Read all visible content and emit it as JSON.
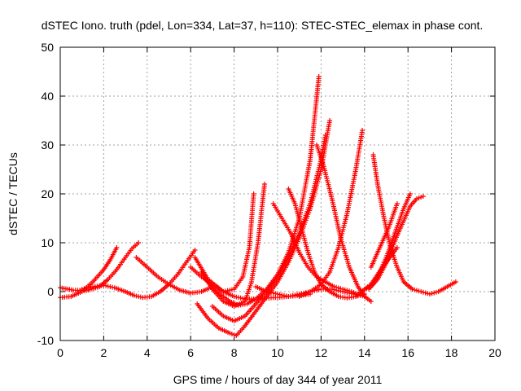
{
  "chart_data": {
    "type": "scatter",
    "title": "dSTEC Iono. truth (pdel, Lon=334, Lat=37, h=110): STEC-STEC_elemax in phase cont.",
    "xlabel": "GPS time / hours of day 344 of year 2011",
    "ylabel": "dSTEC  / TECUs",
    "xlim": [
      0,
      20
    ],
    "ylim": [
      -10,
      50
    ],
    "xticks": [
      0,
      2,
      4,
      6,
      8,
      10,
      12,
      14,
      16,
      18,
      20
    ],
    "yticks": [
      -10,
      0,
      10,
      20,
      30,
      40,
      50
    ],
    "grid": true,
    "marker": "+",
    "color": "#ff0000",
    "series": [
      {
        "x": [
          0.0,
          0.5,
          1.0,
          1.5,
          2.0,
          2.3,
          2.6
        ],
        "y": [
          -1.2,
          -1.0,
          0.0,
          2.0,
          4.5,
          6.5,
          9.0
        ]
      },
      {
        "x": [
          0.0,
          0.6,
          1.2,
          1.8,
          2.2,
          2.6,
          3.0,
          3.3,
          3.6
        ],
        "y": [
          0.8,
          0.3,
          0.2,
          1.0,
          2.5,
          4.5,
          7.0,
          8.8,
          10.0
        ]
      },
      {
        "x": [
          1.0,
          1.5,
          2.0,
          2.5,
          3.0,
          3.4,
          3.8,
          4.2,
          4.6,
          5.0,
          5.4,
          5.8,
          6.2
        ],
        "y": [
          0.5,
          1.0,
          1.3,
          0.8,
          0.0,
          -0.8,
          -1.2,
          -1.0,
          0.0,
          1.5,
          3.5,
          6.0,
          8.5
        ]
      },
      {
        "x": [
          3.5,
          4.0,
          4.5,
          5.0,
          5.5,
          6.0,
          6.5,
          7.0
        ],
        "y": [
          7.0,
          5.0,
          3.0,
          1.5,
          0.3,
          -0.3,
          0.0,
          1.0
        ]
      },
      {
        "x": [
          6.0,
          6.5,
          7.0,
          7.5,
          8.0,
          8.5,
          9.0,
          9.5,
          10.0,
          10.5,
          11.0,
          11.5
        ],
        "y": [
          5.0,
          3.0,
          1.5,
          0.0,
          -1.0,
          -1.5,
          -1.5,
          -1.3,
          -1.2,
          -1.0,
          -0.8,
          -0.5
        ]
      },
      {
        "x": [
          6.2,
          6.8,
          7.5,
          8.0,
          8.4,
          8.7,
          8.9
        ],
        "y": [
          7.0,
          2.5,
          0.0,
          0.5,
          3.0,
          9.0,
          20.0
        ]
      },
      {
        "x": [
          6.5,
          7.0,
          7.5,
          8.0,
          8.5,
          8.8,
          9.1,
          9.4
        ],
        "y": [
          4.0,
          0.5,
          -2.0,
          -3.0,
          -2.0,
          2.0,
          10.0,
          22.0
        ]
      },
      {
        "x": [
          6.6,
          7.2,
          7.8,
          8.2,
          8.6,
          9.0,
          9.5,
          10.0,
          10.5,
          11.0,
          11.5,
          11.9
        ],
        "y": [
          3.0,
          0.0,
          -2.0,
          -2.8,
          -2.5,
          -1.5,
          0.5,
          3.5,
          8.0,
          15.0,
          27.0,
          44.0
        ]
      },
      {
        "x": [
          6.3,
          6.8,
          7.3,
          7.8,
          8.1,
          8.5,
          9.0,
          9.5,
          10.0,
          10.5,
          11.0,
          11.5,
          12.0,
          12.4
        ],
        "y": [
          -2.5,
          -5.5,
          -7.5,
          -8.5,
          -9.0,
          -7.0,
          -4.0,
          -1.0,
          2.0,
          6.0,
          11.0,
          17.0,
          25.0,
          35.0
        ]
      },
      {
        "x": [
          7.0,
          7.5,
          8.0,
          8.5,
          9.0,
          9.5,
          10.0,
          10.5,
          11.0,
          11.5,
          12.0,
          12.2
        ],
        "y": [
          -3.0,
          -5.0,
          -6.0,
          -5.0,
          -2.5,
          0.0,
          3.0,
          7.0,
          12.0,
          18.0,
          27.0,
          32.0
        ]
      },
      {
        "x": [
          9.8,
          10.2,
          10.6,
          11.0,
          11.4,
          11.8,
          12.2,
          12.6,
          13.0,
          13.4,
          13.7
        ],
        "y": [
          18.0,
          15.0,
          12.0,
          8.0,
          5.0,
          3.0,
          2.0,
          1.0,
          0.5,
          0.0,
          -0.5
        ]
      },
      {
        "x": [
          10.5,
          10.8,
          11.1,
          11.4,
          11.7,
          12.0,
          12.4,
          12.8,
          13.2,
          13.6,
          14.0
        ],
        "y": [
          21.0,
          18.0,
          13.0,
          8.0,
          4.0,
          1.5,
          0.0,
          -1.0,
          -1.3,
          -1.0,
          -0.5
        ]
      },
      {
        "x": [
          9.0,
          9.5,
          10.0,
          10.5,
          11.0,
          11.5,
          12.0,
          12.5,
          13.0,
          13.5,
          14.0
        ],
        "y": [
          1.0,
          0.0,
          -0.5,
          -1.0,
          -0.5,
          0.0,
          0.5,
          0.5,
          0.0,
          -0.5,
          -1.0
        ]
      },
      {
        "x": [
          11.0,
          11.5,
          12.0,
          12.4,
          12.8,
          13.2,
          13.6,
          13.9
        ],
        "y": [
          -1.0,
          0.0,
          1.5,
          4.0,
          9.0,
          16.0,
          25.0,
          33.0
        ]
      },
      {
        "x": [
          11.8,
          12.1,
          12.5,
          12.9,
          13.3,
          13.7,
          14.0,
          14.3
        ],
        "y": [
          30.0,
          26.0,
          19.0,
          11.0,
          5.0,
          1.0,
          -1.0,
          -2.0
        ]
      },
      {
        "x": [
          14.0,
          14.3,
          14.6,
          14.9,
          15.2,
          15.5,
          15.8,
          16.1,
          16.4,
          16.7
        ],
        "y": [
          0.5,
          1.0,
          2.5,
          5.0,
          8.0,
          11.5,
          14.5,
          17.5,
          19.0,
          19.5
        ]
      },
      {
        "x": [
          14.2,
          14.6,
          15.0,
          15.4,
          15.8,
          16.1
        ],
        "y": [
          0.5,
          3.0,
          7.0,
          12.0,
          17.0,
          20.0
        ]
      },
      {
        "x": [
          14.3,
          14.7,
          15.1,
          15.5
        ],
        "y": [
          5.0,
          9.0,
          13.0,
          18.0
        ]
      },
      {
        "x": [
          14.4,
          14.6,
          14.9,
          15.2,
          15.5,
          15.8,
          16.2,
          16.6,
          17.0,
          17.4,
          17.8,
          18.2
        ],
        "y": [
          28.0,
          22.0,
          15.0,
          9.0,
          5.0,
          2.0,
          0.5,
          0.0,
          -0.5,
          0.0,
          1.0,
          2.0
        ]
      },
      {
        "x": [
          13.6,
          14.0,
          14.3,
          14.6,
          15.0,
          15.5
        ],
        "y": [
          -1.0,
          0.5,
          1.5,
          3.5,
          6.0,
          9.0
        ]
      }
    ]
  }
}
